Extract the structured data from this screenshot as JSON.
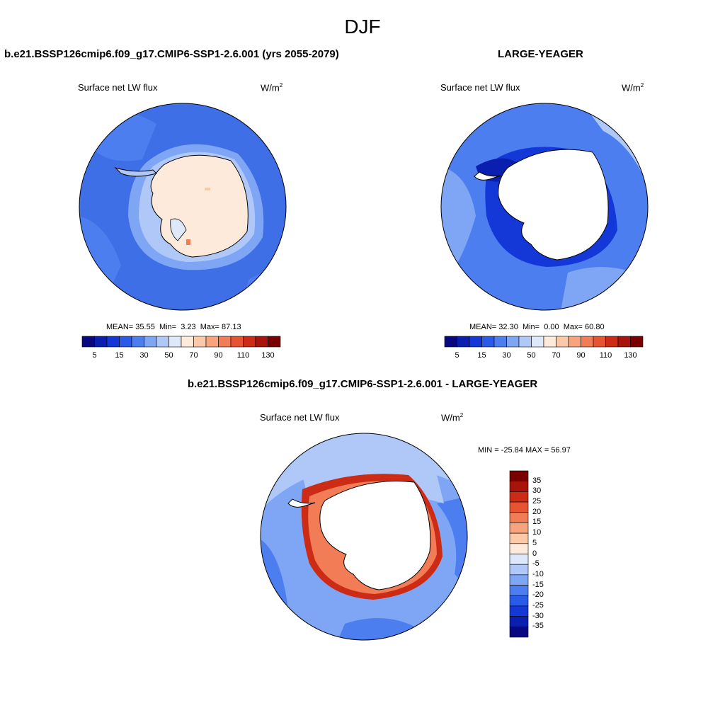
{
  "figure": {
    "title": "DJF"
  },
  "panel1": {
    "title": "b.e21.BSSP126cmip6.f09_g17.CMIP6-SSP1-2.6.001 (yrs 2055-2079)",
    "variable": "Surface net LW flux",
    "unit_base": "W/m",
    "unit_exp": "2",
    "stats": {
      "mean_label": "MEAN=",
      "mean": "35.55",
      "min_label": "Min=",
      "min": "3.23",
      "max_label": "Max=",
      "max": "87.13"
    }
  },
  "panel2": {
    "title": "LARGE-YEAGER",
    "variable": "Surface net LW flux",
    "unit_base": "W/m",
    "unit_exp": "2",
    "stats": {
      "mean_label": "MEAN=",
      "mean": "32.30",
      "min_label": "Min=",
      "min": "0.00",
      "max_label": "Max=",
      "max": "60.80"
    }
  },
  "panel3": {
    "title": "b.e21.BSSP126cmip6.f09_g17.CMIP6-SSP1-2.6.001 - LARGE-YEAGER",
    "variable": "Surface net LW flux",
    "unit_base": "W/m",
    "unit_exp": "2",
    "minmax": "MIN = -25.84 MAX =  56.97"
  },
  "colorbar_abs": {
    "colors": [
      "#080880",
      "#0a1fb0",
      "#1438d8",
      "#2a5ae8",
      "#4d7ef0",
      "#7ea6f4",
      "#b0c8f8",
      "#dde8fb",
      "#fdeadb",
      "#fbc9a8",
      "#f7a47e",
      "#f17c56",
      "#e65432",
      "#cc2c16",
      "#a8140a",
      "#7a0000"
    ],
    "tick_labels": [
      "5",
      "15",
      "30",
      "50",
      "70",
      "90",
      "110",
      "130"
    ]
  },
  "colorbar_diff": {
    "colors": [
      "#7a0000",
      "#a8140a",
      "#cc2c16",
      "#e65432",
      "#f17c56",
      "#f7a47e",
      "#fbc9a8",
      "#fdeadb",
      "#dde8fb",
      "#b0c8f8",
      "#7ea6f4",
      "#4d7ef0",
      "#2a5ae8",
      "#1438d8",
      "#0a1fb0",
      "#080880"
    ],
    "tick_labels": [
      "35",
      "30",
      "25",
      "20",
      "15",
      "10",
      "5",
      "0",
      "-5",
      "-10",
      "-15",
      "-20",
      "-25",
      "-30",
      "-35"
    ]
  },
  "map_colors": {
    "ocean_mid": "#3f6fe6",
    "ocean_light": "#7ea6f4",
    "ocean_pale": "#b0c8f8",
    "ocean_dark": "#1438d8",
    "ice_pale": "#fdeadb",
    "diff_red": "#cc2c16",
    "diff_orange": "#f17c56",
    "land_white": "#ffffff",
    "coastline": "#000000"
  }
}
